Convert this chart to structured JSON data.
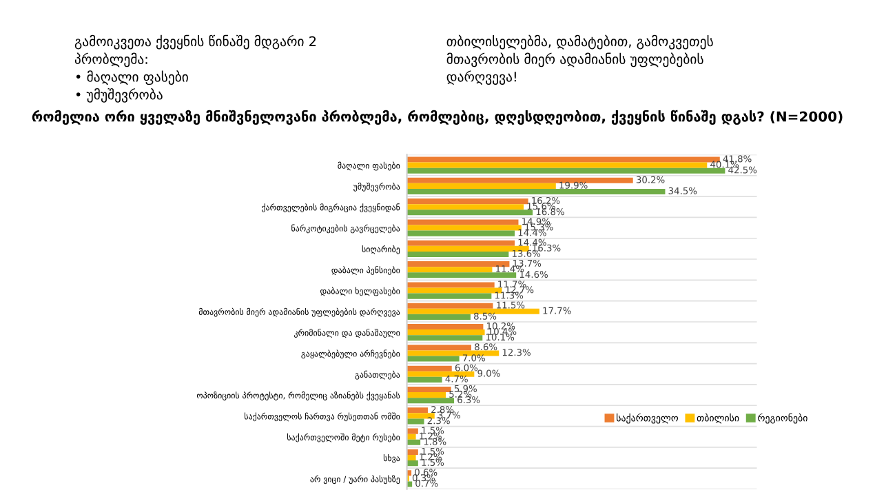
{
  "chart_data": {
    "type": "bar",
    "orientation": "horizontal",
    "title": "რომელია ორი ყველაზე მნიშვნელოვანი პრობლემა, რომლებიც, დღესდღეობით, ქვეყნის წინაშე დგას? (N=2000)",
    "annotations": [
      "გამოიკვეთა ქვეყნის წინაშე მდგარი 2\nპრობლემა:\n• მაღალი ფასები\n• უმუშევრობა",
      "თბილისელებმა, დამატებით, გამოკვეთეს\nმთავრობის მიერ ადამიანის უფლებების\nდარღვევა!"
    ],
    "categories": [
      "მაღალი ფასები",
      "უმუშევრობა",
      "ქართველების მიგრაცია ქვეყნიდან",
      "ნარკოტიკების გავრცელება",
      "სიღარიბე",
      "დაბალი პენსიები",
      "დაბალი ხელფასები",
      "მთავრობის მიერ ადამიანის უფლებების დარღვევა",
      "კრიმინალი და დანაშაული",
      "გაყალბებული არჩევნები",
      "განათლება",
      "ოპოზიციის პროტესტი, რომელიც აზიანებს ქვეყანას",
      "საქართველოს ჩართვა რუსეთთან ომში",
      "საქართველოში მეტი რუსები",
      "სხვა",
      "არ ვიცი / უარი პასუხზე"
    ],
    "series": [
      {
        "name": "საქართველო",
        "color": "#ed7d31",
        "values": [
          41.8,
          30.2,
          16.2,
          14.9,
          14.4,
          13.7,
          11.7,
          11.5,
          10.2,
          8.6,
          6.0,
          5.9,
          2.8,
          1.5,
          1.5,
          0.6
        ],
        "value_labels": [
          "41.8%",
          "30.2%",
          "16.2%",
          "14.9%",
          "14.4%",
          "13.7%",
          "11.7%",
          "11.5%",
          "10.2%",
          "8.6%",
          "6.0%",
          "5.9%",
          "2.8%",
          "1.5%",
          "1.5%",
          "0.6%"
        ]
      },
      {
        "name": "თბილისი",
        "color": "#ffc000",
        "values": [
          40.1,
          19.9,
          15.6,
          15.3,
          16.3,
          11.4,
          12.7,
          17.7,
          10.4,
          12.3,
          9.0,
          5.2,
          3.7,
          1.2,
          1.2,
          0.3
        ],
        "value_labels": [
          "40.1%",
          "19.9%",
          "15.6%",
          "15.3%",
          "16.3%",
          "11.4%",
          "12.7%",
          "17.7%",
          "10.4%",
          "12.3%",
          "9.0%",
          "5.2%",
          "3.7%",
          "1.2%",
          "1.2%",
          "0.3%"
        ]
      },
      {
        "name": "რეგიონები",
        "color": "#70ad47",
        "values": [
          42.5,
          34.5,
          16.8,
          14.4,
          13.6,
          14.6,
          11.3,
          8.5,
          10.1,
          7.0,
          4.7,
          6.3,
          2.3,
          1.8,
          1.5,
          0.7
        ],
        "value_labels": [
          "42.5%",
          "34.5%",
          "16.8%",
          "14.4%",
          "13.6%",
          "14.6%",
          "11.3%",
          "8.5%",
          "10.1%",
          "7.0%",
          "4.7%",
          "6.3%",
          "2.3%",
          "1.8%",
          "1.5%",
          "0.7%"
        ]
      }
    ],
    "grid": "y",
    "legend": "bottom right",
    "tick_labels": "y"
  }
}
